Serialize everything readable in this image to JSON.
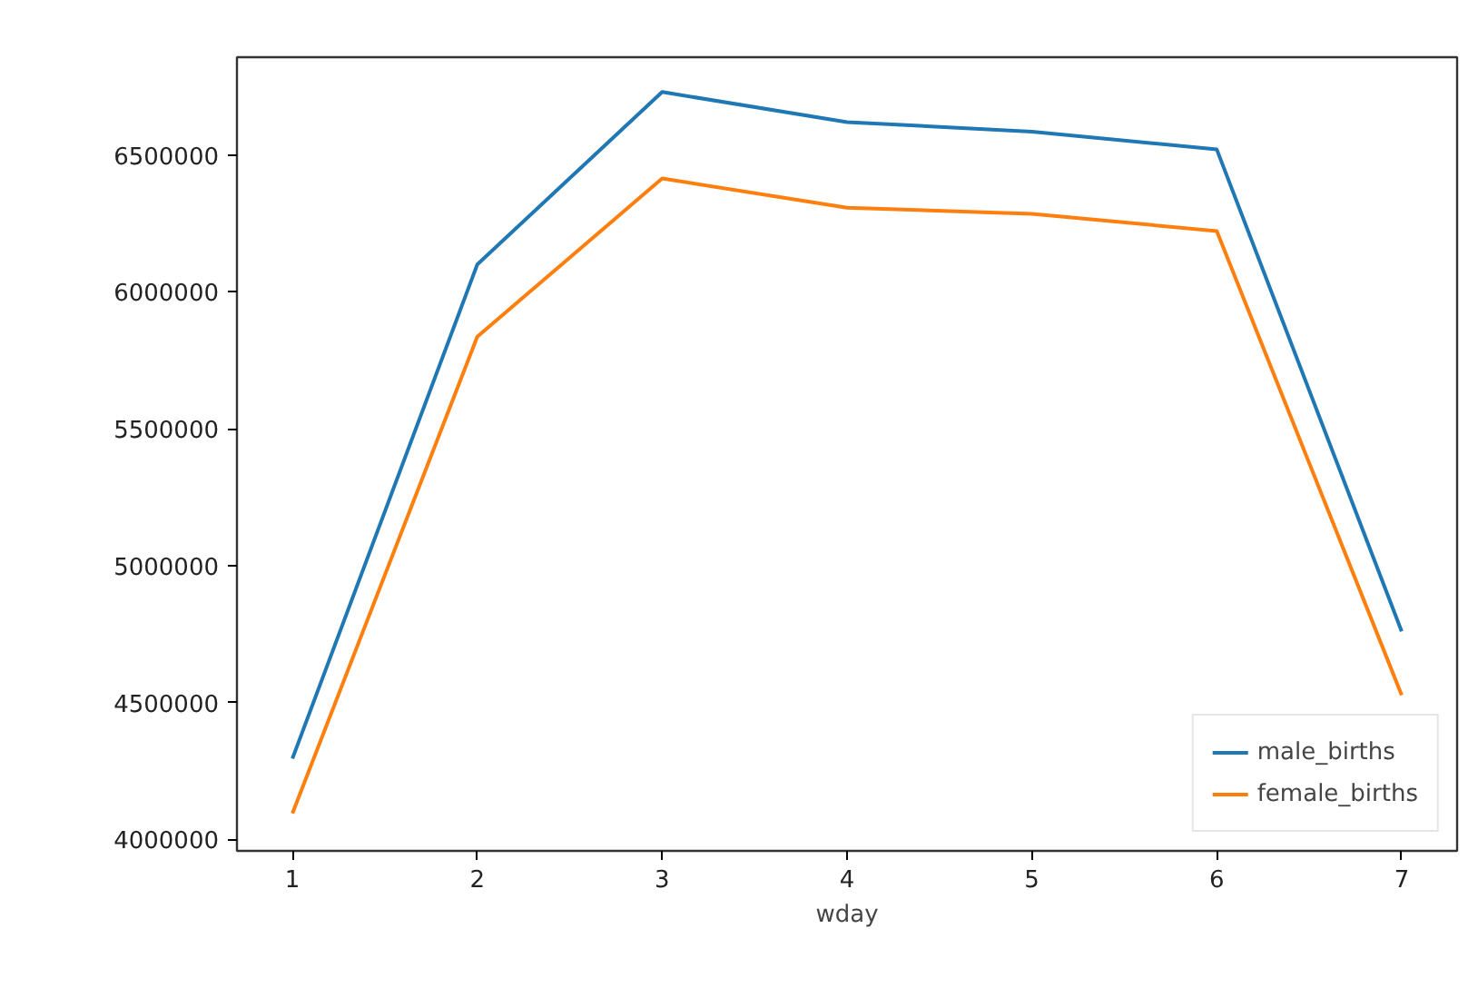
{
  "chart_data": {
    "type": "line",
    "xlabel": "wday",
    "x": [
      1,
      2,
      3,
      4,
      5,
      6,
      7
    ],
    "series": [
      {
        "name": "male_births",
        "color": "#1f77b4",
        "values": [
          4295000,
          6100000,
          6730000,
          6620000,
          6585000,
          6520000,
          4760000
        ]
      },
      {
        "name": "female_births",
        "color": "#ff7f0e",
        "values": [
          4095000,
          5836000,
          6414000,
          6307000,
          6285000,
          6222000,
          4527000
        ]
      }
    ],
    "xlim": [
      0.7,
      7.3
    ],
    "ylim": [
      3958000,
      6857000
    ],
    "xticks": [
      1,
      2,
      3,
      4,
      5,
      6,
      7
    ],
    "yticks": [
      4000000,
      4500000,
      5000000,
      5500000,
      6000000,
      6500000
    ],
    "grid": false,
    "legend": "bottom right"
  }
}
